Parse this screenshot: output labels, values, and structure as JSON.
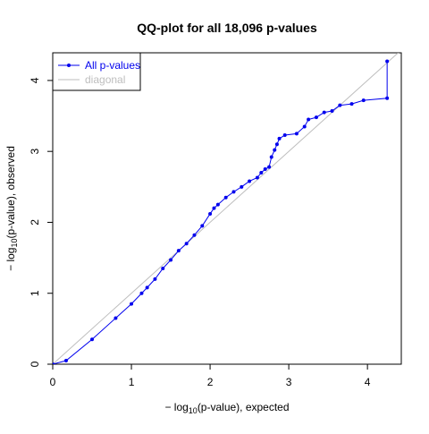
{
  "chart_data": {
    "type": "line",
    "title": "QQ-plot for all 18,096 p-values",
    "xlabel": {
      "prefix": "− log",
      "sub": "10",
      "suffix": "(p-value), expected"
    },
    "ylabel": {
      "prefix": "− log",
      "sub": "10",
      "suffix": "(p-value), observed"
    },
    "xlim": [
      0,
      4.43
    ],
    "ylim": [
      0,
      4.39
    ],
    "xticks": [
      0,
      1,
      2,
      3,
      4
    ],
    "yticks": [
      0,
      1,
      2,
      3,
      4
    ],
    "legend": "top-left",
    "series": [
      {
        "name": "All p-values",
        "color": "#0000ee",
        "markers": true,
        "x": [
          0,
          0.17,
          0.5,
          0.8,
          1.0,
          1.13,
          1.2,
          1.3,
          1.4,
          1.5,
          1.6,
          1.7,
          1.8,
          1.9,
          2.0,
          2.05,
          2.1,
          2.2,
          2.3,
          2.4,
          2.5,
          2.6,
          2.65,
          2.7,
          2.75,
          2.78,
          2.82,
          2.85,
          2.88,
          2.95,
          3.1,
          3.2,
          3.25,
          3.35,
          3.45,
          3.55,
          3.65,
          3.8,
          3.95,
          4.25,
          4.25
        ],
        "values": [
          0,
          0.05,
          0.35,
          0.65,
          0.85,
          1.0,
          1.08,
          1.2,
          1.35,
          1.47,
          1.6,
          1.7,
          1.82,
          1.95,
          2.12,
          2.2,
          2.25,
          2.35,
          2.43,
          2.5,
          2.58,
          2.63,
          2.7,
          2.75,
          2.78,
          2.92,
          3.02,
          3.1,
          3.18,
          3.23,
          3.25,
          3.35,
          3.45,
          3.48,
          3.55,
          3.57,
          3.65,
          3.67,
          3.72,
          3.75,
          4.27
        ]
      },
      {
        "name": "diagonal",
        "color": "#bebebe",
        "markers": false,
        "x": [
          0,
          5
        ],
        "values": [
          0,
          5
        ]
      }
    ]
  }
}
